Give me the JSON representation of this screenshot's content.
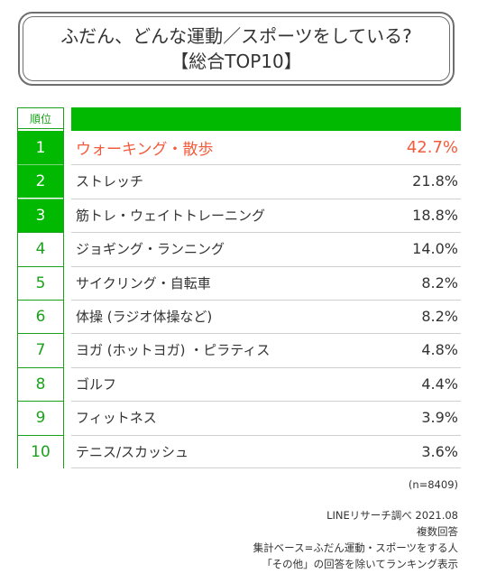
{
  "title": {
    "line1": "ふだん、どんな運動／スポーツをしている?",
    "line2": "【総合TOP10】"
  },
  "table": {
    "rank_header": "順位"
  },
  "chart_data": {
    "type": "table",
    "title": "ふだん、どんな運動／スポーツをしている? 【総合TOP10】",
    "ranks": [
      "1",
      "2",
      "3",
      "4",
      "5",
      "6",
      "7",
      "8",
      "9",
      "10"
    ],
    "categories": [
      "ウォーキング・散歩",
      "ストレッチ",
      "筋トレ・ウェイトトレーニング",
      "ジョギング・ランニング",
      "サイクリング・自転車",
      "体操 (ラジオ体操など)",
      "ヨガ (ホットヨガ) ・ピラティス",
      "ゴルフ",
      "フィットネス",
      "テニス/スカッシュ"
    ],
    "values": [
      42.7,
      21.8,
      18.8,
      14.0,
      8.2,
      8.2,
      4.8,
      4.4,
      3.9,
      3.6
    ],
    "value_labels": [
      "42.7%",
      "21.8%",
      "18.8%",
      "14.0%",
      "8.2%",
      "8.2%",
      "4.8%",
      "4.4%",
      "3.9%",
      "3.6%"
    ],
    "unit": "%"
  },
  "colors": {
    "accent_green": "#00b900",
    "highlight_red": "#f25c3c",
    "rank_text_green": "#1aa31a"
  },
  "footnotes": {
    "n": "(n=8409)",
    "source": "LINEリサーチ調べ 2021.08",
    "method": "複数回答",
    "base": "集計ベース=ふだん運動・スポーツをする人",
    "note": "「その他」の回答を除いてランキング表示"
  }
}
